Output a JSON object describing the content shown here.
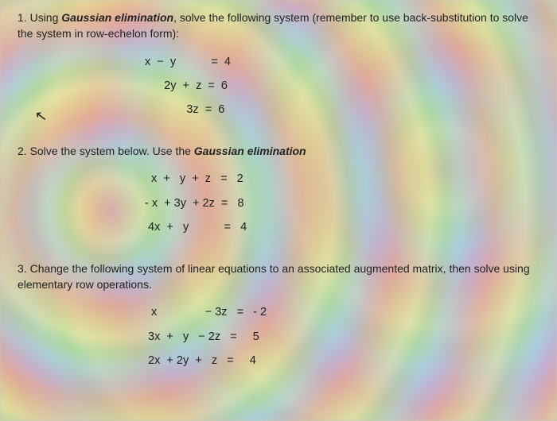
{
  "problems": [
    {
      "num": "1.",
      "prompt_pre": "Using ",
      "prompt_bold": "Gaussian elimination",
      "prompt_post": ", solve the following system (remember to use back-substitution to solve the system in row-echelon form):",
      "equations": [
        "x  −  y           =  4",
        "      2y  +  z  =  6",
        "             3z  =  6"
      ]
    },
    {
      "num": "2.",
      "prompt_pre": "Solve the system below. Use the ",
      "prompt_bold": "Gaussian elimination",
      "prompt_post": "",
      "equations": [
        "  x  +   y  +  z   =   2",
        "- x  + 3y  + 2z  =   8",
        " 4x  +   y           =   4"
      ]
    },
    {
      "num": "3.",
      "prompt_pre": "Change the following system of linear equations to an associated augmented matrix, then solve using elementary row operations.",
      "prompt_bold": "",
      "prompt_post": "",
      "equations": [
        "  x               − 3z   =   - 2",
        " 3x  +   y   − 2z   =     5",
        " 2x  + 2y  +   z   =     4"
      ]
    }
  ],
  "style": {
    "text_color": "#2a2a2a",
    "bg_tint": "#c8c8b8",
    "font_size_prompt": 14,
    "font_size_eq": 14.5
  }
}
